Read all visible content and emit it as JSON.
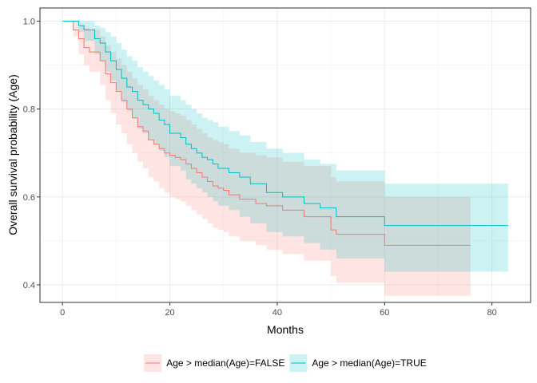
{
  "chart_data": {
    "type": "line",
    "subtype": "kaplan-meier-step",
    "title": "",
    "xlabel": "Months",
    "ylabel": "Overall survival probability (Age)",
    "xlim": [
      -4.2,
      87.2
    ],
    "ylim": [
      0.36,
      1.03
    ],
    "x_ticks": [
      0,
      20,
      40,
      60,
      80
    ],
    "x_tick_labels": [
      "0",
      "20",
      "40",
      "60",
      "80"
    ],
    "y_ticks": [
      0.4,
      0.6,
      0.8,
      1.0
    ],
    "y_tick_labels": [
      "0.4",
      "0.6",
      "0.8",
      "1.0"
    ],
    "grid": true,
    "legend_position": "bottom",
    "series": [
      {
        "name": "Age > median(Age)=FALSE",
        "color": "#F8766D",
        "x": [
          0,
          2.0,
          3.0,
          4.0,
          5.0,
          7.0,
          8.0,
          9.0,
          10.0,
          11.0,
          12.0,
          13.0,
          14.0,
          15.0,
          16.0,
          17.0,
          18.0,
          19.0,
          20.0,
          21.0,
          22.0,
          23.0,
          24.0,
          25.0,
          26.0,
          27.0,
          28.0,
          29.0,
          30.0,
          31.0,
          33.0,
          36.0,
          38.0,
          41.0,
          45.0,
          50.0,
          51.0,
          60.0,
          76.0
        ],
        "y": [
          1.0,
          0.98,
          0.96,
          0.94,
          0.93,
          0.91,
          0.88,
          0.86,
          0.84,
          0.82,
          0.8,
          0.78,
          0.76,
          0.75,
          0.73,
          0.72,
          0.71,
          0.7,
          0.695,
          0.69,
          0.685,
          0.675,
          0.665,
          0.655,
          0.645,
          0.635,
          0.625,
          0.62,
          0.615,
          0.605,
          0.595,
          0.585,
          0.58,
          0.57,
          0.555,
          0.525,
          0.515,
          0.49,
          0.49
        ],
        "lower": [
          1.0,
          0.965,
          0.925,
          0.9,
          0.885,
          0.855,
          0.82,
          0.79,
          0.765,
          0.745,
          0.72,
          0.7,
          0.68,
          0.665,
          0.645,
          0.635,
          0.62,
          0.61,
          0.6,
          0.595,
          0.59,
          0.58,
          0.57,
          0.56,
          0.55,
          0.54,
          0.53,
          0.525,
          0.52,
          0.51,
          0.5,
          0.49,
          0.48,
          0.47,
          0.455,
          0.42,
          0.405,
          0.375,
          0.375
        ],
        "upper": [
          1.0,
          1.0,
          0.99,
          0.985,
          0.98,
          0.965,
          0.945,
          0.93,
          0.915,
          0.9,
          0.885,
          0.87,
          0.855,
          0.845,
          0.83,
          0.82,
          0.81,
          0.8,
          0.795,
          0.79,
          0.785,
          0.775,
          0.765,
          0.755,
          0.745,
          0.735,
          0.73,
          0.725,
          0.72,
          0.71,
          0.7,
          0.695,
          0.69,
          0.68,
          0.67,
          0.645,
          0.635,
          0.6,
          0.6
        ]
      },
      {
        "name": "Age > median(Age)=TRUE",
        "color": "#00BFC4",
        "x": [
          0,
          3.0,
          4.0,
          6.0,
          7.0,
          8.0,
          9.0,
          10.0,
          11.0,
          12.0,
          13.0,
          14.0,
          15.0,
          16.0,
          17.0,
          18.0,
          19.0,
          20.0,
          22.0,
          23.0,
          24.0,
          25.0,
          26.0,
          27.0,
          28.0,
          29.0,
          31.0,
          33.0,
          35.0,
          38.0,
          41.0,
          45.0,
          48.0,
          51.0,
          60.0,
          83.0
        ],
        "y": [
          1.0,
          0.99,
          0.98,
          0.96,
          0.95,
          0.93,
          0.91,
          0.89,
          0.87,
          0.85,
          0.84,
          0.82,
          0.81,
          0.8,
          0.79,
          0.775,
          0.765,
          0.745,
          0.735,
          0.72,
          0.71,
          0.7,
          0.69,
          0.685,
          0.675,
          0.665,
          0.655,
          0.645,
          0.63,
          0.61,
          0.6,
          0.585,
          0.575,
          0.555,
          0.535,
          0.535
        ],
        "lower": [
          1.0,
          0.975,
          0.955,
          0.925,
          0.91,
          0.885,
          0.865,
          0.84,
          0.815,
          0.795,
          0.78,
          0.755,
          0.745,
          0.73,
          0.72,
          0.705,
          0.69,
          0.67,
          0.66,
          0.64,
          0.63,
          0.62,
          0.61,
          0.6,
          0.59,
          0.58,
          0.57,
          0.555,
          0.54,
          0.52,
          0.51,
          0.495,
          0.48,
          0.46,
          0.43,
          0.43
        ],
        "upper": [
          1.0,
          1.0,
          1.0,
          0.99,
          0.985,
          0.975,
          0.965,
          0.95,
          0.935,
          0.92,
          0.91,
          0.895,
          0.885,
          0.875,
          0.865,
          0.855,
          0.845,
          0.83,
          0.82,
          0.81,
          0.8,
          0.79,
          0.78,
          0.775,
          0.77,
          0.76,
          0.75,
          0.74,
          0.725,
          0.71,
          0.7,
          0.685,
          0.675,
          0.66,
          0.63,
          0.63
        ]
      }
    ]
  },
  "legend": {
    "items": [
      {
        "label": "Age > median(Age)=FALSE",
        "color": "#F8766D"
      },
      {
        "label": "Age > median(Age)=TRUE",
        "color": "#00BFC4"
      }
    ]
  }
}
